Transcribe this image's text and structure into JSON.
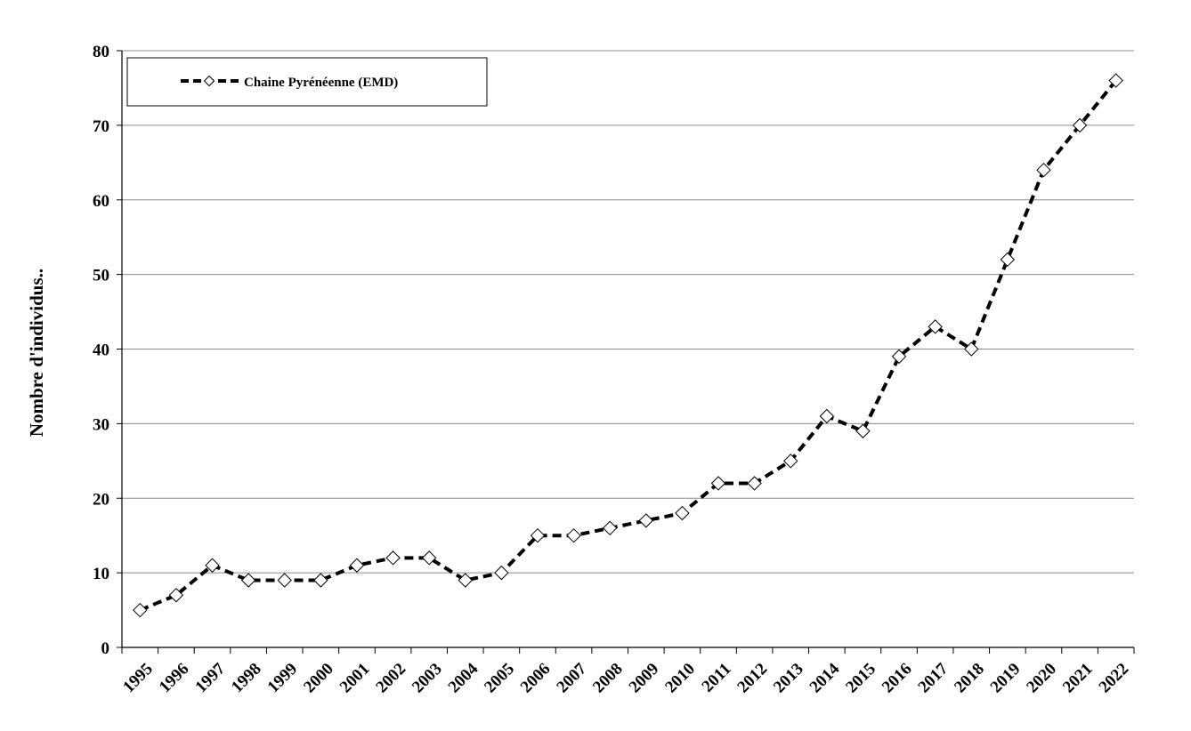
{
  "chart_data": {
    "type": "line",
    "title": "",
    "xlabel": "",
    "ylabel": "Nombre d'individus..",
    "ylim": [
      0,
      80
    ],
    "yticks": [
      "0",
      "10",
      "20",
      "30",
      "40",
      "50",
      "60",
      "70",
      "80"
    ],
    "grid": "horizontal",
    "legend": {
      "position": "top-left",
      "boxed": true
    },
    "categories": [
      "1995",
      "1996",
      "1997",
      "1998",
      "1999",
      "2000",
      "2001",
      "2002",
      "2003",
      "2004",
      "2005",
      "2006",
      "2007",
      "2008",
      "2009",
      "2010",
      "2011",
      "2012",
      "2013",
      "2014",
      "2015",
      "2016",
      "2017",
      "2018",
      "2019",
      "2020",
      "2021",
      "2022"
    ],
    "series": [
      {
        "name": "Chaine Pyrénéenne (EMD)",
        "line_style": "dashed",
        "marker": "diamond-open",
        "color": "#000000",
        "values": [
          5,
          7,
          11,
          9,
          9,
          9,
          11,
          12,
          12,
          9,
          10,
          15,
          15,
          16,
          17,
          18,
          22,
          22,
          25,
          31,
          29,
          39,
          43,
          40,
          52,
          64,
          70,
          76
        ]
      }
    ]
  }
}
